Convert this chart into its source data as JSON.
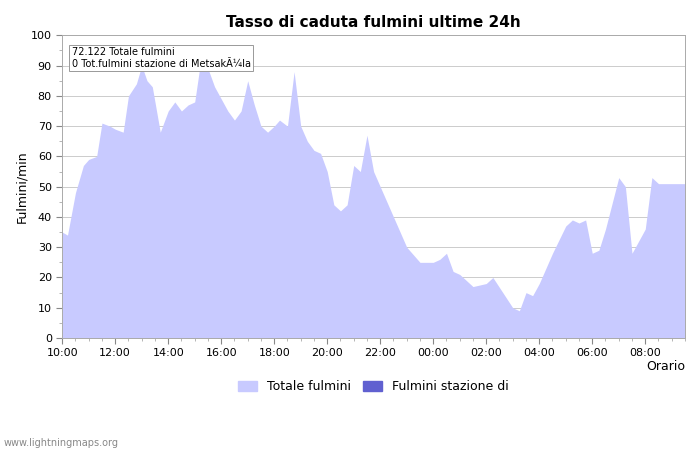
{
  "title": "Tasso di caduta fulmini ultime 24h",
  "xlabel": "Orario",
  "ylabel": "Fulmini/min",
  "annotation_line1": "72.122 Totale fulmini",
  "annotation_line2": "0 Tot.fulmini stazione di MetsakÃ¼la",
  "legend_label1": "Totale fulmini",
  "legend_label2": "Fulmini stazione di",
  "fill_color": "#c8caff",
  "fill_color2": "#6060d0",
  "watermark": "www.lightningmaps.org",
  "ylim": [
    0,
    100
  ],
  "xtick_labels": [
    "10:00",
    "12:00",
    "14:00",
    "16:00",
    "18:00",
    "20:00",
    "22:00",
    "00:00",
    "02:00",
    "04:00",
    "06:00",
    "08:00"
  ],
  "x_hours": [
    0.0,
    0.2,
    0.5,
    0.8,
    1.0,
    1.3,
    1.5,
    1.8,
    2.0,
    2.3,
    2.5,
    2.8,
    3.0,
    3.2,
    3.4,
    3.7,
    4.0,
    4.25,
    4.5,
    4.75,
    5.0,
    5.2,
    5.5,
    5.75,
    6.0,
    6.25,
    6.5,
    6.75,
    7.0,
    7.25,
    7.5,
    7.75,
    8.0,
    8.2,
    8.5,
    8.75,
    9.0,
    9.25,
    9.5,
    9.75,
    10.0,
    10.25,
    10.5,
    10.75,
    11.0,
    11.25,
    11.5,
    11.75,
    12.0,
    12.25,
    12.5,
    12.75,
    13.0,
    13.5,
    14.0,
    14.25,
    14.5,
    14.75,
    15.0,
    15.5,
    16.0,
    16.25,
    17.0,
    17.25,
    17.5,
    17.75,
    18.0,
    18.5,
    19.0,
    19.25,
    19.5,
    19.75,
    20.0,
    20.25,
    20.5,
    21.0,
    21.25,
    21.5,
    22.0,
    22.25,
    22.5,
    23.5
  ],
  "y_values": [
    35,
    34,
    48,
    57,
    59,
    60,
    71,
    70,
    69,
    68,
    80,
    84,
    90,
    85,
    83,
    68,
    75,
    78,
    75,
    77,
    78,
    90,
    89,
    83,
    79,
    75,
    72,
    75,
    85,
    77,
    70,
    68,
    70,
    72,
    70,
    88,
    70,
    65,
    62,
    61,
    55,
    44,
    42,
    44,
    57,
    55,
    67,
    55,
    50,
    45,
    40,
    35,
    30,
    25,
    25,
    26,
    28,
    22,
    21,
    17,
    18,
    20,
    10,
    9,
    15,
    14,
    18,
    28,
    37,
    39,
    38,
    39,
    28,
    29,
    36,
    53,
    50,
    28,
    36,
    53,
    51,
    51
  ]
}
